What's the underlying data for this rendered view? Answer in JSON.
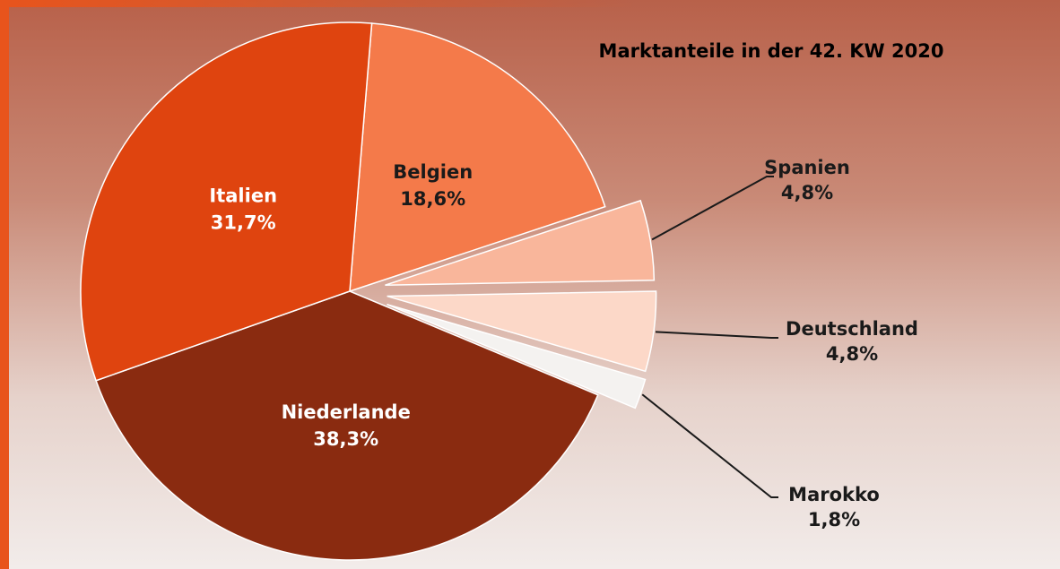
{
  "chart_data": {
    "type": "pie",
    "title": "Marktanteile in der 42. KW 2020",
    "categories": [
      "Belgien",
      "Spanien",
      "Deutschland",
      "Marokko",
      "Niederlande",
      "Italien"
    ],
    "values": [
      18.6,
      4.8,
      4.8,
      1.8,
      38.3,
      31.7
    ],
    "value_labels": [
      "18,6%",
      "4,8%",
      "4,8%",
      "1,8%",
      "38,3%",
      "31,7%"
    ],
    "colors": [
      "#f47a4a",
      "#f9b69b",
      "#fcd8c8",
      "#f4f2f0",
      "#8a2b10",
      "#df440f"
    ]
  }
}
